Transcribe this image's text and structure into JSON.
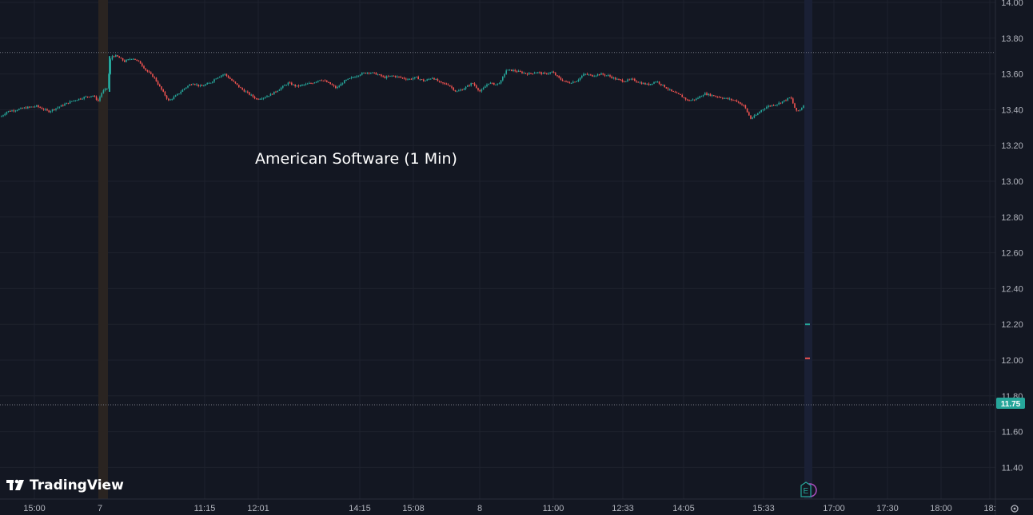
{
  "chart_data": {
    "type": "candlestick",
    "title": "American Software (1 Min)",
    "brand": "TradingView",
    "y_ticks": [
      "14.00",
      "13.80",
      "13.60",
      "13.40",
      "13.20",
      "13.00",
      "12.80",
      "12.60",
      "12.40",
      "12.20",
      "12.00",
      "11.80",
      "11.60",
      "11.40"
    ],
    "ylim": [
      11.25,
      14.0
    ],
    "x_ticks": [
      "15:00",
      "7",
      "11:15",
      "12:01",
      "14:15",
      "15:08",
      "8",
      "11:00",
      "12:33",
      "14:05",
      "15:33",
      "17:00",
      "17:30",
      "18:00",
      "18:"
    ],
    "current_price": 11.75,
    "current_price_label": "11.75",
    "reference_price": 13.72,
    "earnings_marker": "E",
    "price_path": [
      [
        0,
        13.36
      ],
      [
        8,
        13.39
      ],
      [
        20,
        13.4
      ],
      [
        30,
        13.41
      ],
      [
        45,
        13.42
      ],
      [
        60,
        13.39
      ],
      [
        75,
        13.42
      ],
      [
        90,
        13.45
      ],
      [
        105,
        13.47
      ],
      [
        115,
        13.48
      ],
      [
        122,
        13.45
      ],
      [
        127,
        13.5
      ],
      [
        133,
        13.52
      ],
      [
        138,
        13.7
      ],
      [
        145,
        13.7
      ],
      [
        155,
        13.67
      ],
      [
        165,
        13.69
      ],
      [
        175,
        13.66
      ],
      [
        182,
        13.62
      ],
      [
        192,
        13.58
      ],
      [
        200,
        13.52
      ],
      [
        210,
        13.45
      ],
      [
        220,
        13.48
      ],
      [
        230,
        13.52
      ],
      [
        240,
        13.55
      ],
      [
        250,
        13.53
      ],
      [
        262,
        13.55
      ],
      [
        270,
        13.58
      ],
      [
        280,
        13.6
      ],
      [
        290,
        13.56
      ],
      [
        300,
        13.52
      ],
      [
        310,
        13.49
      ],
      [
        320,
        13.46
      ],
      [
        330,
        13.47
      ],
      [
        340,
        13.49
      ],
      [
        350,
        13.52
      ],
      [
        360,
        13.55
      ],
      [
        370,
        13.53
      ],
      [
        380,
        13.54
      ],
      [
        390,
        13.55
      ],
      [
        400,
        13.57
      ],
      [
        410,
        13.55
      ],
      [
        420,
        13.52
      ],
      [
        430,
        13.56
      ],
      [
        440,
        13.58
      ],
      [
        450,
        13.6
      ],
      [
        460,
        13.61
      ],
      [
        470,
        13.6
      ],
      [
        480,
        13.58
      ],
      [
        490,
        13.59
      ],
      [
        500,
        13.58
      ],
      [
        510,
        13.57
      ],
      [
        520,
        13.58
      ],
      [
        530,
        13.56
      ],
      [
        540,
        13.58
      ],
      [
        550,
        13.55
      ],
      [
        560,
        13.54
      ],
      [
        570,
        13.5
      ],
      [
        580,
        13.52
      ],
      [
        590,
        13.55
      ],
      [
        600,
        13.5
      ],
      [
        610,
        13.55
      ],
      [
        620,
        13.54
      ],
      [
        626,
        13.56
      ],
      [
        632,
        13.62
      ],
      [
        640,
        13.62
      ],
      [
        650,
        13.61
      ],
      [
        660,
        13.6
      ],
      [
        670,
        13.61
      ],
      [
        680,
        13.6
      ],
      [
        690,
        13.61
      ],
      [
        700,
        13.57
      ],
      [
        710,
        13.55
      ],
      [
        720,
        13.56
      ],
      [
        730,
        13.6
      ],
      [
        740,
        13.59
      ],
      [
        750,
        13.6
      ],
      [
        760,
        13.59
      ],
      [
        770,
        13.57
      ],
      [
        780,
        13.56
      ],
      [
        790,
        13.57
      ],
      [
        800,
        13.55
      ],
      [
        810,
        13.54
      ],
      [
        820,
        13.56
      ],
      [
        830,
        13.53
      ],
      [
        840,
        13.5
      ],
      [
        850,
        13.48
      ],
      [
        860,
        13.45
      ],
      [
        870,
        13.46
      ],
      [
        880,
        13.49
      ],
      [
        890,
        13.48
      ],
      [
        900,
        13.47
      ],
      [
        910,
        13.46
      ],
      [
        920,
        13.45
      ],
      [
        930,
        13.42
      ],
      [
        938,
        13.35
      ],
      [
        945,
        13.37
      ],
      [
        952,
        13.4
      ],
      [
        960,
        13.42
      ],
      [
        970,
        13.43
      ],
      [
        980,
        13.45
      ],
      [
        988,
        13.47
      ],
      [
        995,
        13.39
      ],
      [
        1000,
        13.4
      ],
      [
        1005,
        13.43
      ]
    ],
    "post_ticks": [
      {
        "price": 12.2,
        "color": "#26a69a"
      },
      {
        "price": 12.01,
        "color": "#ef5350"
      }
    ]
  },
  "colors": {
    "background": "#131722",
    "grid": "#1e222d",
    "up": "#26a69a",
    "down": "#ef5350",
    "axis_text": "#b2b5be",
    "session_band_1": "#2a2421",
    "session_band_2": "#1a2035"
  }
}
